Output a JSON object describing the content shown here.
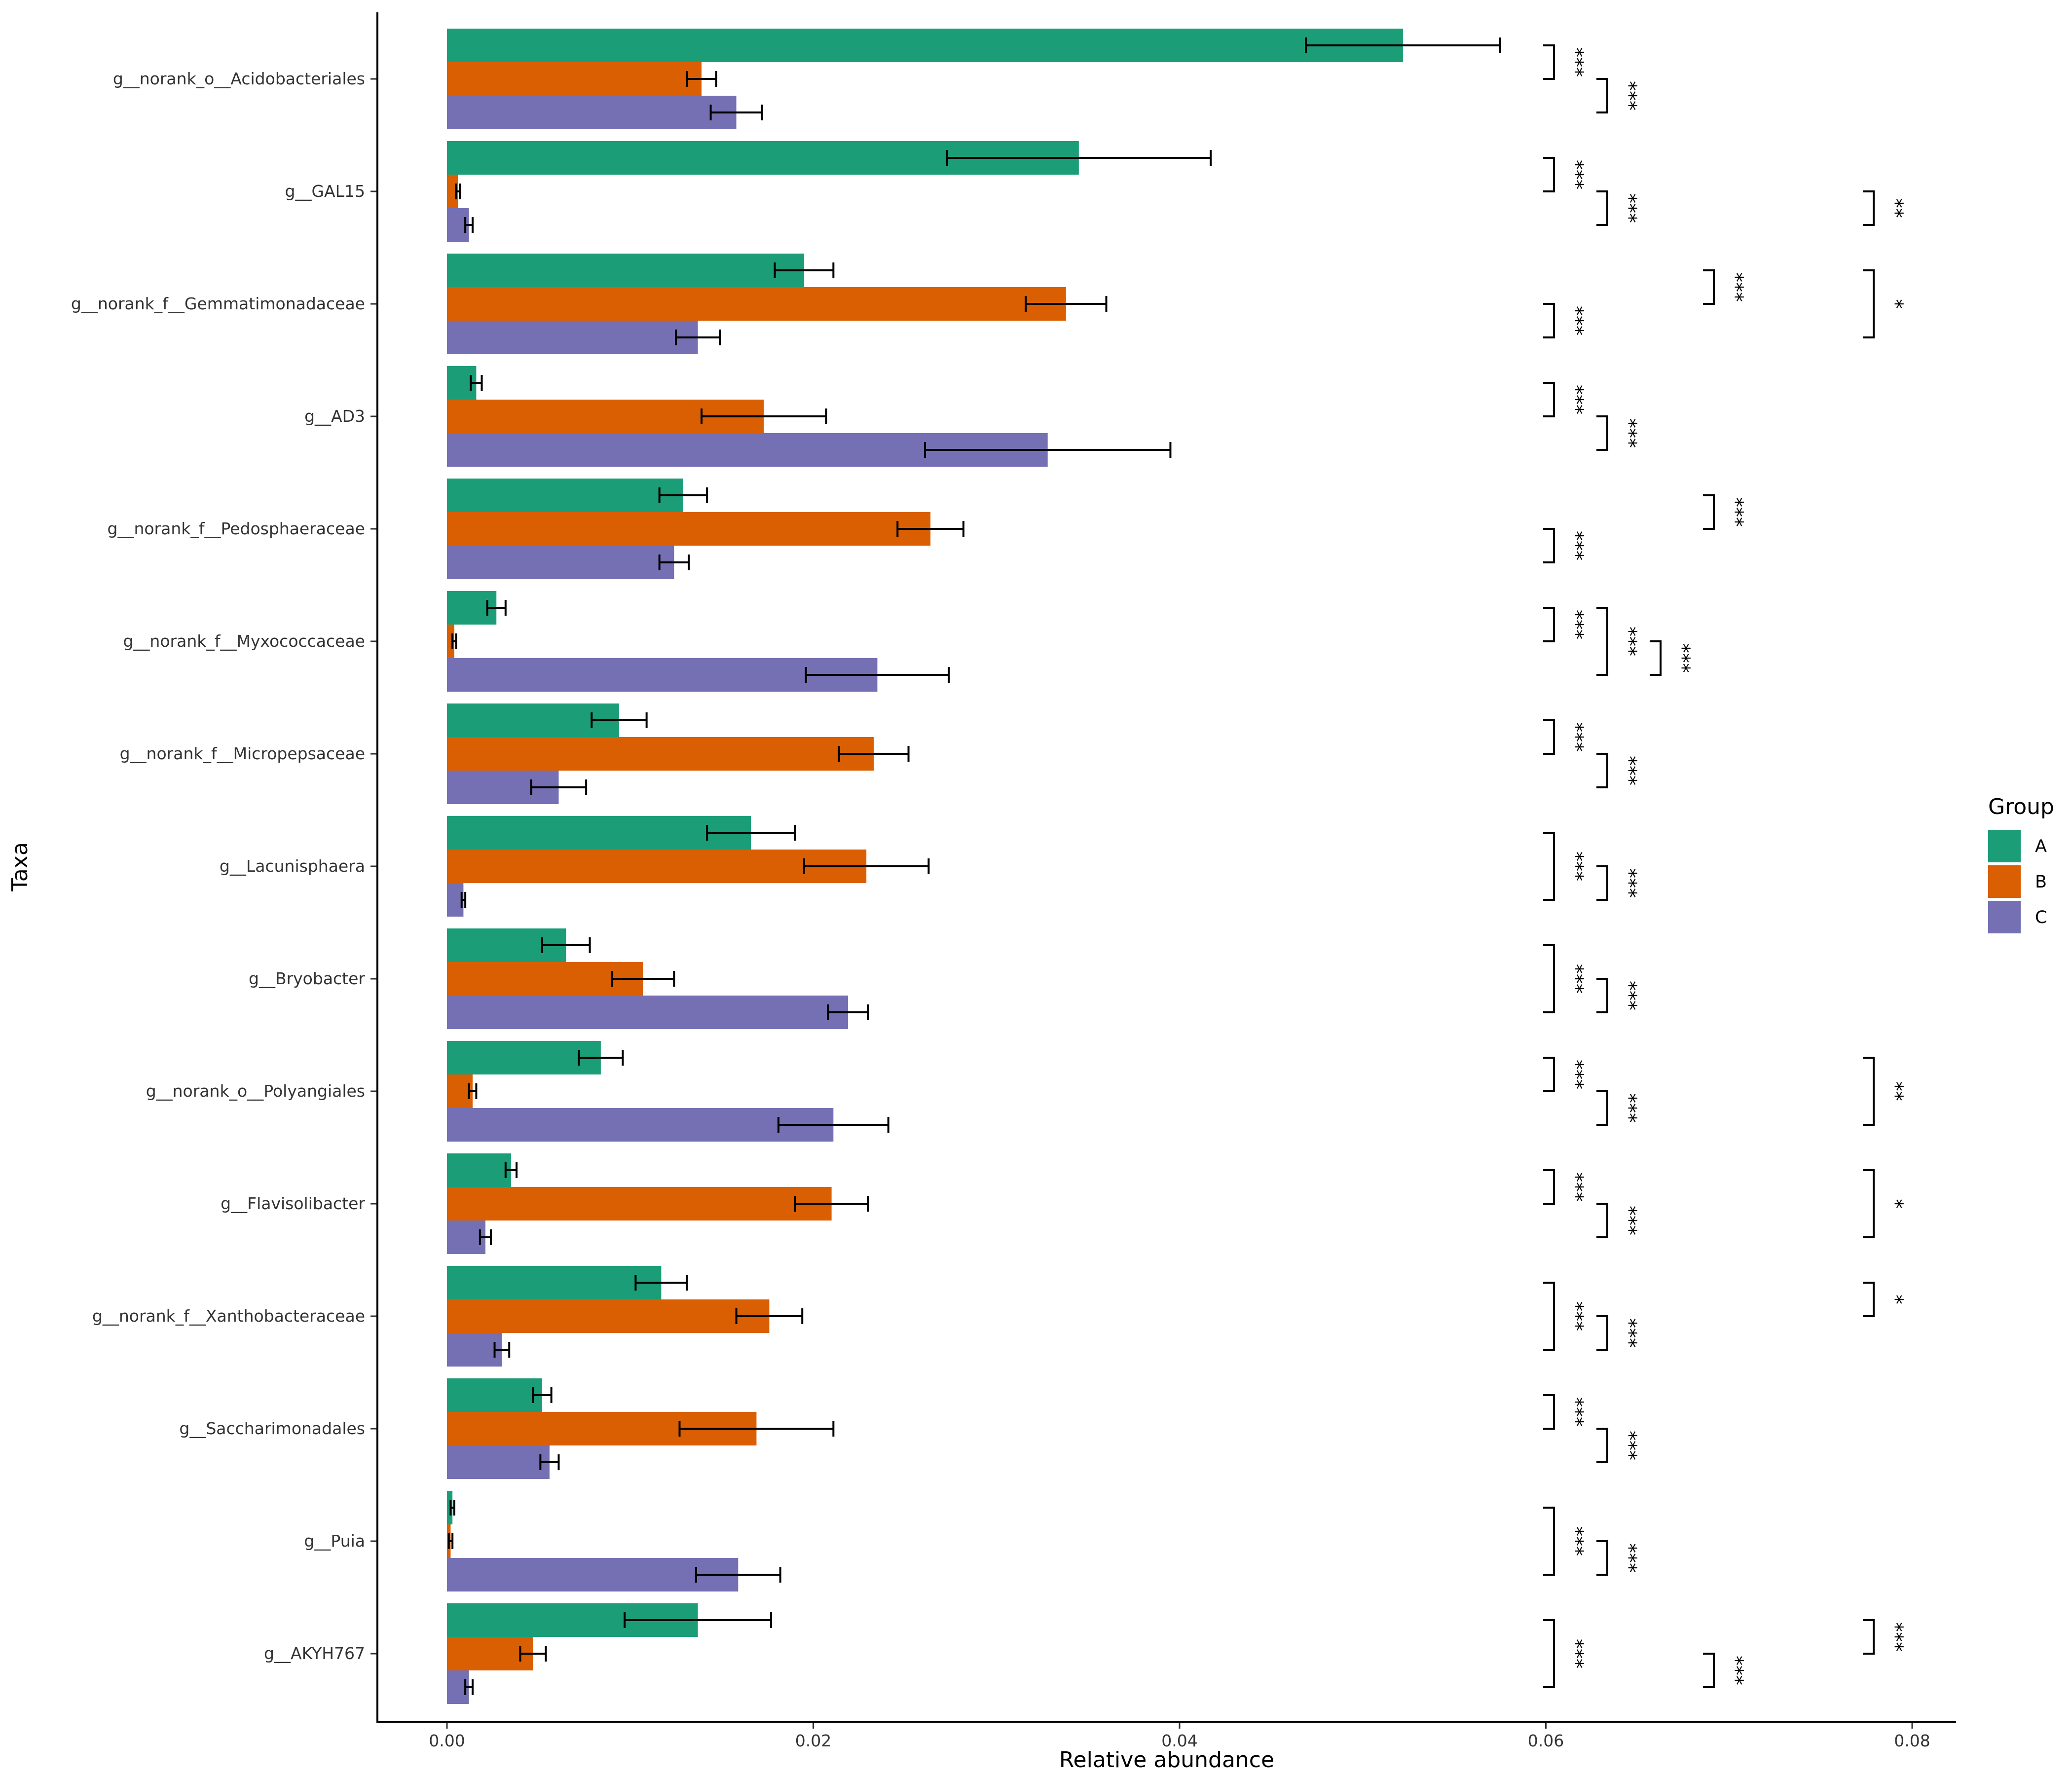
{
  "chart_data": {
    "type": "bar",
    "orientation": "horizontal",
    "xlabel": "Relative abundance",
    "ylabel": "Taxa",
    "xlim": [
      -0.0038,
      0.0825
    ],
    "x_ticks": [
      "0.00",
      "0.02",
      "0.04",
      "0.06",
      "0.08"
    ],
    "x_tick_values": [
      0.0,
      0.02,
      0.04,
      0.06,
      0.08
    ],
    "grid": false,
    "legend": {
      "title": "Group",
      "placement": "right"
    },
    "categories": [
      "g__norank_o__Acidobacteriales",
      "g__GAL15",
      "g__norank_f__Gemmatimonadaceae",
      "g__AD3",
      "g__norank_f__Pedosphaeraceae",
      "g__norank_f__Myxococcaceae",
      "g__norank_f__Micropepsaceae",
      "g__Lacunisphaera",
      "g__Bryobacter",
      "g__norank_o__Polyangiales",
      "g__Flavisolibacter",
      "g__norank_f__Xanthobacteraceae",
      "g__Saccharimonadales",
      "g__Puia",
      "g__AKYH767"
    ],
    "series": [
      {
        "name": "A",
        "color": "#1b9e77",
        "values": [
          0.0522,
          0.0345,
          0.0195,
          0.0016,
          0.0129,
          0.0027,
          0.0094,
          0.0166,
          0.0065,
          0.0084,
          0.0035,
          0.0117,
          0.0052,
          0.0003,
          0.0137
        ],
        "errors": [
          0.0053,
          0.0072,
          0.0016,
          0.0003,
          0.0013,
          0.0005,
          0.0015,
          0.0024,
          0.0013,
          0.0012,
          0.0003,
          0.0014,
          0.0005,
          0.0001,
          0.004
        ]
      },
      {
        "name": "B",
        "color": "#d95f02",
        "values": [
          0.0139,
          0.0006,
          0.0338,
          0.0173,
          0.0264,
          0.0004,
          0.0233,
          0.0229,
          0.0107,
          0.0014,
          0.021,
          0.0176,
          0.0169,
          0.0002,
          0.0047
        ],
        "errors": [
          0.0008,
          0.0001,
          0.0022,
          0.0034,
          0.0018,
          0.0001,
          0.0019,
          0.0034,
          0.0017,
          0.0002,
          0.002,
          0.0018,
          0.0042,
          0.0001,
          0.0007
        ]
      },
      {
        "name": "C",
        "color": "#7570b3",
        "values": [
          0.0158,
          0.0012,
          0.0137,
          0.0328,
          0.0124,
          0.0235,
          0.0061,
          0.0009,
          0.0219,
          0.0211,
          0.0021,
          0.003,
          0.0056,
          0.0159,
          0.0012
        ],
        "errors": [
          0.0014,
          0.0002,
          0.0012,
          0.0067,
          0.0008,
          0.0039,
          0.0015,
          0.0001,
          0.0011,
          0.003,
          0.0003,
          0.0004,
          0.0005,
          0.0023,
          0.0002
        ]
      }
    ],
    "significance": [
      {
        "category": 0,
        "from": "A",
        "to": "B",
        "label": "***",
        "level": 1
      },
      {
        "category": 0,
        "from": "B",
        "to": "C",
        "label": "***",
        "level": 2
      },
      {
        "category": 1,
        "from": "A",
        "to": "B",
        "label": "***",
        "level": 1
      },
      {
        "category": 1,
        "from": "B",
        "to": "C",
        "label": "***",
        "level": 2
      },
      {
        "category": 1,
        "from": "B",
        "to": "C",
        "label": "**",
        "level": 5
      },
      {
        "category": 2,
        "from": "A",
        "to": "B",
        "label": "***",
        "level": 4
      },
      {
        "category": 2,
        "from": "A",
        "to": "C",
        "label": "*",
        "level": 5
      },
      {
        "category": 2,
        "from": "B",
        "to": "C",
        "label": "***",
        "level": 1
      },
      {
        "category": 3,
        "from": "A",
        "to": "B",
        "label": "***",
        "level": 1
      },
      {
        "category": 3,
        "from": "B",
        "to": "C",
        "label": "***",
        "level": 2
      },
      {
        "category": 4,
        "from": "A",
        "to": "B",
        "label": "***",
        "level": 4
      },
      {
        "category": 4,
        "from": "B",
        "to": "C",
        "label": "***",
        "level": 1
      },
      {
        "category": 5,
        "from": "A",
        "to": "B",
        "label": "***",
        "level": 1
      },
      {
        "category": 5,
        "from": "A",
        "to": "C",
        "label": "***",
        "level": 2
      },
      {
        "category": 5,
        "from": "B",
        "to": "C",
        "label": "***",
        "level": 3
      },
      {
        "category": 6,
        "from": "A",
        "to": "B",
        "label": "***",
        "level": 1
      },
      {
        "category": 6,
        "from": "B",
        "to": "C",
        "label": "***",
        "level": 2
      },
      {
        "category": 7,
        "from": "A",
        "to": "C",
        "label": "***",
        "level": 1
      },
      {
        "category": 7,
        "from": "B",
        "to": "C",
        "label": "***",
        "level": 2
      },
      {
        "category": 8,
        "from": "A",
        "to": "C",
        "label": "***",
        "level": 1
      },
      {
        "category": 8,
        "from": "B",
        "to": "C",
        "label": "***",
        "level": 2
      },
      {
        "category": 9,
        "from": "A",
        "to": "B",
        "label": "***",
        "level": 1
      },
      {
        "category": 9,
        "from": "B",
        "to": "C",
        "label": "***",
        "level": 2
      },
      {
        "category": 9,
        "from": "A",
        "to": "C",
        "label": "**",
        "level": 5
      },
      {
        "category": 10,
        "from": "A",
        "to": "B",
        "label": "***",
        "level": 1
      },
      {
        "category": 10,
        "from": "B",
        "to": "C",
        "label": "***",
        "level": 2
      },
      {
        "category": 10,
        "from": "A",
        "to": "C",
        "label": "*",
        "level": 5
      },
      {
        "category": 11,
        "from": "A",
        "to": "C",
        "label": "***",
        "level": 1
      },
      {
        "category": 11,
        "from": "B",
        "to": "C",
        "label": "***",
        "level": 2
      },
      {
        "category": 11,
        "from": "A",
        "to": "B",
        "label": "*",
        "level": 5
      },
      {
        "category": 12,
        "from": "A",
        "to": "B",
        "label": "***",
        "level": 1
      },
      {
        "category": 12,
        "from": "B",
        "to": "C",
        "label": "***",
        "level": 2
      },
      {
        "category": 13,
        "from": "A",
        "to": "C",
        "label": "***",
        "level": 1
      },
      {
        "category": 13,
        "from": "B",
        "to": "C",
        "label": "***",
        "level": 2
      },
      {
        "category": 14,
        "from": "A",
        "to": "C",
        "label": "***",
        "level": 1
      },
      {
        "category": 14,
        "from": "B",
        "to": "C",
        "label": "***",
        "level": 4
      },
      {
        "category": 14,
        "from": "A",
        "to": "B",
        "label": "***",
        "level": 5
      }
    ]
  }
}
